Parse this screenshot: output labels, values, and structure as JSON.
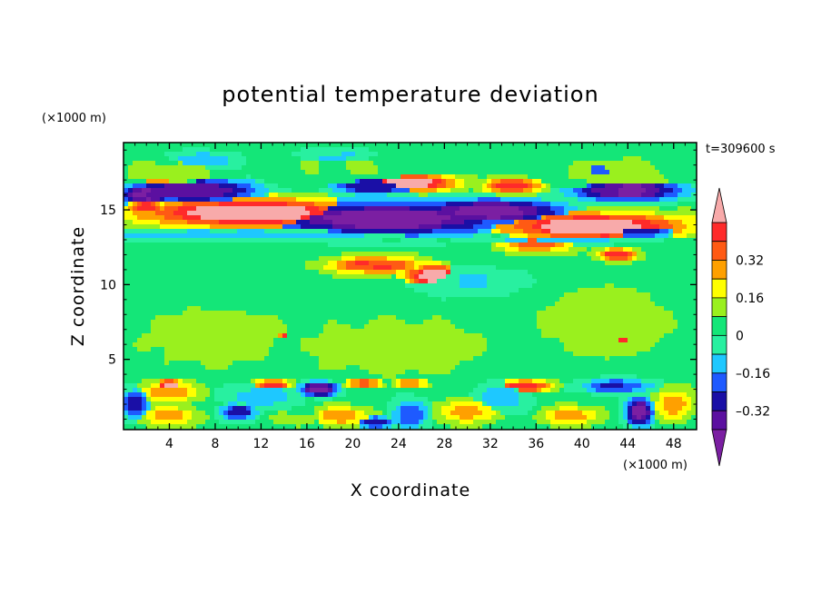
{
  "chart_data": {
    "type": "heatmap",
    "title": "potential temperature deviation",
    "xlabel": "X coordinate",
    "ylabel": "Z coordinate",
    "x_unit": "(×1000 m)",
    "y_unit": "(×1000 m)",
    "time_label": "t=309600 s",
    "xlim": [
      0,
      50
    ],
    "ylim": [
      0.3,
      19.5
    ],
    "x_ticks": [
      4,
      8,
      12,
      16,
      20,
      24,
      28,
      32,
      36,
      40,
      44,
      48
    ],
    "x_tick_labels": [
      "4",
      "8",
      "12",
      "16",
      "20",
      "24",
      "28",
      "32",
      "36",
      "40",
      "44",
      "48"
    ],
    "y_ticks": [
      5,
      10,
      15
    ],
    "y_tick_labels": [
      "5",
      "10",
      "15"
    ],
    "background_level": 0.04,
    "levels": [
      {
        "min": -0.48,
        "max": -0.4,
        "color": "#7b1fa2"
      },
      {
        "min": -0.4,
        "max": -0.32,
        "color": "#5b10a0"
      },
      {
        "min": -0.32,
        "max": -0.24,
        "color": "#1a0fa6"
      },
      {
        "min": -0.24,
        "max": -0.16,
        "color": "#1e5aff"
      },
      {
        "min": -0.16,
        "max": -0.08,
        "color": "#1ec8ff"
      },
      {
        "min": -0.08,
        "max": 0.0,
        "color": "#28f0a0"
      },
      {
        "min": 0.0,
        "max": 0.08,
        "color": "#14e678"
      },
      {
        "min": 0.08,
        "max": 0.16,
        "color": "#9af01e"
      },
      {
        "min": 0.16,
        "max": 0.24,
        "color": "#ffff00"
      },
      {
        "min": 0.24,
        "max": 0.32,
        "color": "#ffa000"
      },
      {
        "min": 0.32,
        "max": 0.4,
        "color": "#ff5a14"
      },
      {
        "min": 0.4,
        "max": 0.48,
        "color": "#ff2a2a"
      },
      {
        "min": 0.48,
        "max": 0.6,
        "color": "#f8aaaa"
      }
    ],
    "colorbar": {
      "tick_labels": [
        "0.32",
        "0.16",
        "0",
        "–0.16",
        "–0.32"
      ],
      "tick_values": [
        0.32,
        0.16,
        0,
        -0.16,
        -0.32
      ],
      "low_extend_color": "#7b1fa2",
      "high_extend_color": "#f8aaaa"
    },
    "features": [
      {
        "x": 4,
        "z": 17.5,
        "rx": 6,
        "rz": 1.2,
        "value": 0.1
      },
      {
        "x": 20,
        "z": 17.8,
        "rx": 8,
        "rz": 1.5,
        "value": 0.08
      },
      {
        "x": 43,
        "z": 17.5,
        "rx": 7,
        "rz": 1.5,
        "value": 0.1
      },
      {
        "x": 7,
        "z": 18.3,
        "rx": 4,
        "rz": 0.8,
        "value": -0.12
      },
      {
        "x": 19,
        "z": 18.5,
        "rx": 5,
        "rz": 0.8,
        "value": -0.08
      },
      {
        "x": 42,
        "z": 17.6,
        "rx": 4,
        "rz": 0.9,
        "value": -0.2
      },
      {
        "x": 30,
        "z": 10.2,
        "rx": 6,
        "rz": 1.2,
        "value": -0.08
      },
      {
        "x": 6,
        "z": 16.3,
        "rx": 7,
        "rz": 1.0,
        "value": -0.38
      },
      {
        "x": 2,
        "z": 16.0,
        "rx": 3,
        "rz": 0.9,
        "value": -0.4
      },
      {
        "x": 22,
        "z": 16.6,
        "rx": 5,
        "rz": 0.7,
        "value": -0.3
      },
      {
        "x": 44,
        "z": 16.3,
        "rx": 6,
        "rz": 0.9,
        "value": -0.4
      },
      {
        "x": 23,
        "z": 14.4,
        "rx": 13,
        "rz": 1.4,
        "value": -0.42
      },
      {
        "x": 32,
        "z": 14.9,
        "rx": 8,
        "rz": 1.0,
        "value": -0.42
      },
      {
        "x": 45,
        "z": 13.6,
        "rx": 4,
        "rz": 0.6,
        "value": -0.3
      },
      {
        "x": 11,
        "z": 14.8,
        "rx": 12,
        "rz": 1.2,
        "value": 0.52
      },
      {
        "x": 41,
        "z": 13.9,
        "rx": 10,
        "rz": 1.1,
        "value": 0.52
      },
      {
        "x": 2,
        "z": 15.2,
        "rx": 2,
        "rz": 0.6,
        "value": 0.42
      },
      {
        "x": 25,
        "z": 16.8,
        "rx": 5,
        "rz": 0.7,
        "value": 0.5
      },
      {
        "x": 34,
        "z": 16.6,
        "rx": 3,
        "rz": 0.6,
        "value": 0.45
      },
      {
        "x": 3,
        "z": 17.0,
        "rx": 2,
        "rz": 0.5,
        "value": 0.28
      },
      {
        "x": 22,
        "z": 11.3,
        "rx": 5,
        "rz": 0.7,
        "value": 0.4
      },
      {
        "x": 27,
        "z": 10.6,
        "rx": 3,
        "rz": 0.9,
        "value": 0.52
      },
      {
        "x": 43,
        "z": 12.0,
        "rx": 2,
        "rz": 0.5,
        "value": 0.45
      },
      {
        "x": 36,
        "z": 12.8,
        "rx": 4,
        "rz": 0.8,
        "value": 0.35
      },
      {
        "x": 10,
        "z": 13.3,
        "rx": 18,
        "rz": 0.5,
        "value": -0.12
      },
      {
        "x": 38,
        "z": 13.0,
        "rx": 10,
        "rz": 0.4,
        "value": -0.1
      },
      {
        "x": 14,
        "z": 6.6,
        "rx": 0.5,
        "rz": 0.3,
        "value": 0.45
      },
      {
        "x": 43.5,
        "z": 6.2,
        "rx": 1,
        "rz": 0.4,
        "value": 0.42
      },
      {
        "x": 8,
        "z": 6.5,
        "rx": 8,
        "rz": 2.5,
        "value": 0.12
      },
      {
        "x": 24,
        "z": 5.8,
        "rx": 10,
        "rz": 2.5,
        "value": 0.12
      },
      {
        "x": 42,
        "z": 7.5,
        "rx": 8,
        "rz": 3,
        "value": 0.12
      },
      {
        "x": 4,
        "z": 2.8,
        "rx": 3,
        "rz": 0.9,
        "value": 0.28
      },
      {
        "x": 4,
        "z": 3.3,
        "rx": 1.5,
        "rz": 0.4,
        "value": 0.52
      },
      {
        "x": 13,
        "z": 3.3,
        "rx": 2,
        "rz": 0.4,
        "value": 0.42
      },
      {
        "x": 17,
        "z": 3.0,
        "rx": 2,
        "rz": 0.6,
        "value": -0.42
      },
      {
        "x": 21,
        "z": 3.4,
        "rx": 2,
        "rz": 0.3,
        "value": 0.4
      },
      {
        "x": 25,
        "z": 3.4,
        "rx": 2,
        "rz": 0.3,
        "value": 0.35
      },
      {
        "x": 35,
        "z": 3.2,
        "rx": 3,
        "rz": 0.5,
        "value": 0.42
      },
      {
        "x": 43,
        "z": 3.2,
        "rx": 4,
        "rz": 0.6,
        "value": -0.24
      },
      {
        "x": 1,
        "z": 2.0,
        "rx": 1.5,
        "rz": 1.2,
        "value": -0.26
      },
      {
        "x": 4,
        "z": 1.2,
        "rx": 3,
        "rz": 0.8,
        "value": 0.26
      },
      {
        "x": 10,
        "z": 1.5,
        "rx": 2,
        "rz": 0.8,
        "value": -0.26
      },
      {
        "x": 15,
        "z": 1.0,
        "rx": 3,
        "rz": 0.7,
        "value": 0.1
      },
      {
        "x": 19,
        "z": 1.2,
        "rx": 3,
        "rz": 0.8,
        "value": 0.28
      },
      {
        "x": 22,
        "z": 0.8,
        "rx": 2,
        "rz": 0.5,
        "value": -0.28
      },
      {
        "x": 25,
        "z": 1.3,
        "rx": 2,
        "rz": 1.3,
        "value": -0.2
      },
      {
        "x": 30,
        "z": 1.5,
        "rx": 3,
        "rz": 1,
        "value": 0.26
      },
      {
        "x": 39,
        "z": 1.2,
        "rx": 3,
        "rz": 0.8,
        "value": 0.26
      },
      {
        "x": 45,
        "z": 1.5,
        "rx": 1.5,
        "rz": 1.2,
        "value": -0.4
      },
      {
        "x": 48,
        "z": 2.0,
        "rx": 2,
        "rz": 1.3,
        "value": 0.28
      },
      {
        "x": 33,
        "z": 2.5,
        "rx": 3,
        "rz": 1.2,
        "value": -0.12
      },
      {
        "x": 12,
        "z": 2.5,
        "rx": 4,
        "rz": 1.0,
        "value": -0.12
      }
    ]
  }
}
